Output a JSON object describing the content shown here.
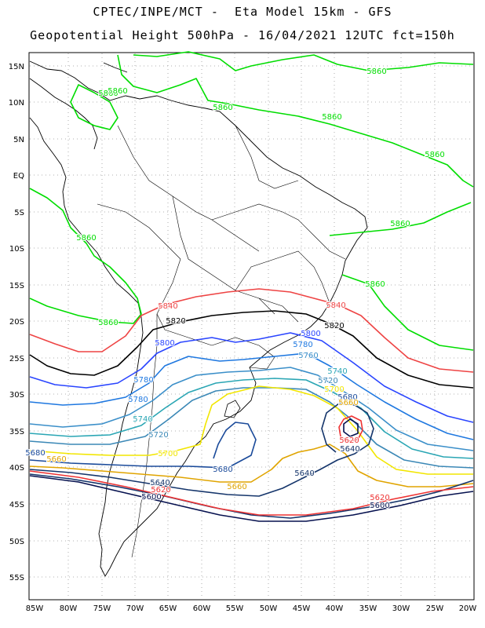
{
  "title_line1": "CPTEC/INPE/MCT -  Eta Model 15km - GFS",
  "title_line2": "Geopotential Height 500hPa - 16/04/2021 12UTC fct=150h",
  "lon_ticks": [
    "85W",
    "80W",
    "75W",
    "70W",
    "65W",
    "60W",
    "55W",
    "50W",
    "45W",
    "40W",
    "35W",
    "30W",
    "25W",
    "20W"
  ],
  "lat_ticks": [
    "15N",
    "10N",
    "5N",
    "EQ",
    "5S",
    "10S",
    "15S",
    "20S",
    "25S",
    "30S",
    "35S",
    "40S",
    "45S",
    "50S",
    "55S"
  ],
  "colors": {
    "5860": "#00dd00",
    "5840": "#ee4444",
    "5820": "#000000",
    "5800": "#2a45ff",
    "5780": "#1f78e0",
    "5760": "#3b8fc9",
    "5740": "#2aa6b4",
    "5720": "#3b88b6",
    "5700": "#f2e600",
    "5680": "#1a4a9a",
    "5660": "#e0a400",
    "5640": "#15356b",
    "5620": "#ee3333",
    "5600": "#06114f"
  },
  "contour_labels": [
    {
      "text": "5860",
      "level": "5860"
    },
    {
      "text": "5860",
      "level": "5860"
    },
    {
      "text": "5860",
      "level": "5860"
    },
    {
      "text": "5860",
      "level": "5860"
    },
    {
      "text": "5860",
      "level": "5860"
    },
    {
      "text": "5860",
      "level": "5860"
    },
    {
      "text": "5860",
      "level": "5860"
    },
    {
      "text": "5860",
      "level": "5860"
    },
    {
      "text": "5860",
      "level": "5860"
    },
    {
      "text": "5860",
      "level": "5860"
    },
    {
      "text": "5840",
      "level": "5840"
    },
    {
      "text": "5840",
      "level": "5840"
    },
    {
      "text": "5820",
      "level": "5820"
    },
    {
      "text": "5820",
      "level": "5820"
    },
    {
      "text": "5800",
      "level": "5800"
    },
    {
      "text": "5800",
      "level": "5800"
    },
    {
      "text": "5780",
      "level": "5780"
    },
    {
      "text": "5780",
      "level": "5780"
    },
    {
      "text": "5780",
      "level": "5780"
    },
    {
      "text": "5760",
      "level": "5760"
    },
    {
      "text": "5740",
      "level": "5740"
    },
    {
      "text": "5740",
      "level": "5740"
    },
    {
      "text": "5720",
      "level": "5720"
    },
    {
      "text": "5720",
      "level": "5720"
    },
    {
      "text": "5700",
      "level": "5700"
    },
    {
      "text": "5700",
      "level": "5700"
    },
    {
      "text": "5680",
      "level": "5680"
    },
    {
      "text": "5680",
      "level": "5680"
    },
    {
      "text": "5680",
      "level": "5680"
    },
    {
      "text": "5660",
      "level": "5660"
    },
    {
      "text": "5660",
      "level": "5660"
    },
    {
      "text": "5660",
      "level": "5660"
    },
    {
      "text": "5640",
      "level": "5640"
    },
    {
      "text": "5640",
      "level": "5640"
    },
    {
      "text": "5640",
      "level": "5640"
    },
    {
      "text": "5620",
      "level": "5620"
    },
    {
      "text": "5620",
      "level": "5620"
    },
    {
      "text": "5620",
      "level": "5620"
    },
    {
      "text": "5600",
      "level": "5600"
    },
    {
      "text": "5600",
      "level": "5600"
    }
  ]
}
